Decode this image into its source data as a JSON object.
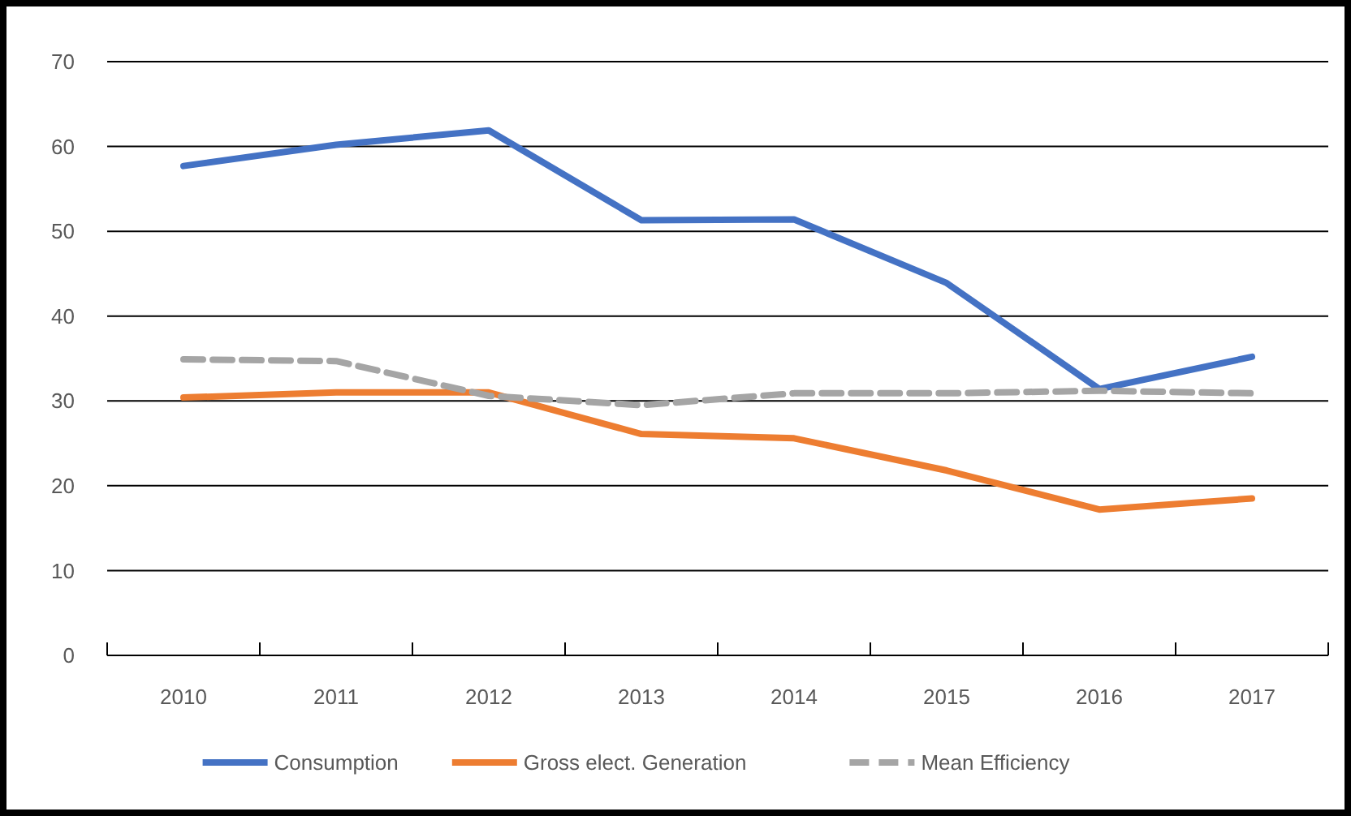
{
  "chart_data": {
    "type": "line",
    "categories": [
      "2010",
      "2011",
      "2012",
      "2013",
      "2014",
      "2015",
      "2016",
      "2017"
    ],
    "series": [
      {
        "name": "Consumption",
        "color": "#4472c4",
        "values": [
          57.7,
          60.2,
          61.9,
          51.3,
          51.4,
          43.9,
          31.4,
          35.2
        ]
      },
      {
        "name": "Gross elect. Generation",
        "color": "#ed7d31",
        "values": [
          30.4,
          31.0,
          31.0,
          26.1,
          25.6,
          21.8,
          17.2,
          18.5
        ]
      },
      {
        "name": "Mean Efficiency",
        "color": "#a5a5a5",
        "line_style": "dashed",
        "values": [
          34.9,
          34.7,
          30.6,
          29.5,
          30.9,
          30.9,
          31.2,
          30.9
        ]
      }
    ],
    "ylim": [
      0,
      70
    ],
    "yticks": [
      0,
      10,
      20,
      30,
      40,
      50,
      60,
      70
    ],
    "grid": "y",
    "legend": "bottom",
    "marker": "none"
  }
}
